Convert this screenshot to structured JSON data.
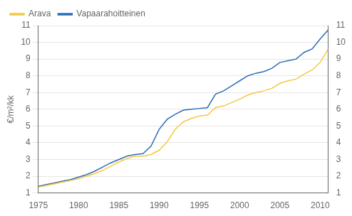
{
  "chart_data": {
    "type": "line",
    "ylabel": "€/m²/kk",
    "x": [
      1975,
      1976,
      1977,
      1978,
      1979,
      1980,
      1981,
      1982,
      1983,
      1984,
      1985,
      1986,
      1987,
      1988,
      1989,
      1990,
      1991,
      1992,
      1993,
      1994,
      1995,
      1996,
      1997,
      1998,
      1999,
      2000,
      2001,
      2002,
      2003,
      2004,
      2005,
      2006,
      2007,
      2008,
      2009,
      2010,
      2011
    ],
    "series": [
      {
        "name": "Arava",
        "color": "#F5C842",
        "values": [
          1.35,
          1.45,
          1.55,
          1.65,
          1.75,
          1.85,
          2.0,
          2.15,
          2.35,
          2.6,
          2.85,
          3.05,
          3.2,
          3.2,
          3.3,
          3.55,
          4.05,
          4.8,
          5.25,
          5.45,
          5.6,
          5.65,
          6.1,
          6.2,
          6.4,
          6.6,
          6.85,
          7.0,
          7.1,
          7.25,
          7.55,
          7.7,
          7.8,
          8.1,
          8.35,
          8.8,
          9.6
        ]
      },
      {
        "name": "Vapaarahoitteinen",
        "color": "#2B6CB8",
        "values": [
          1.4,
          1.5,
          1.6,
          1.7,
          1.8,
          1.95,
          2.1,
          2.3,
          2.55,
          2.8,
          3.0,
          3.2,
          3.3,
          3.35,
          3.8,
          4.8,
          5.4,
          5.7,
          5.95,
          6.0,
          6.05,
          6.1,
          6.9,
          7.1,
          7.4,
          7.7,
          8.0,
          8.15,
          8.25,
          8.45,
          8.8,
          8.9,
          9.0,
          9.4,
          9.6,
          10.2,
          10.75
        ]
      }
    ],
    "xlim": [
      1975,
      2011
    ],
    "xticks": [
      1975,
      1980,
      1985,
      1990,
      1995,
      2000,
      2005,
      2010
    ],
    "ylim": [
      1,
      11
    ],
    "yticks": [
      1,
      2,
      3,
      4,
      5,
      6,
      7,
      8,
      9,
      10,
      11
    ],
    "y2lim": [
      1,
      11
    ],
    "y2ticks": [
      1,
      2,
      3,
      4,
      5,
      6,
      7,
      8,
      9,
      10,
      11
    ],
    "grid": "y",
    "legend": "upper left"
  }
}
